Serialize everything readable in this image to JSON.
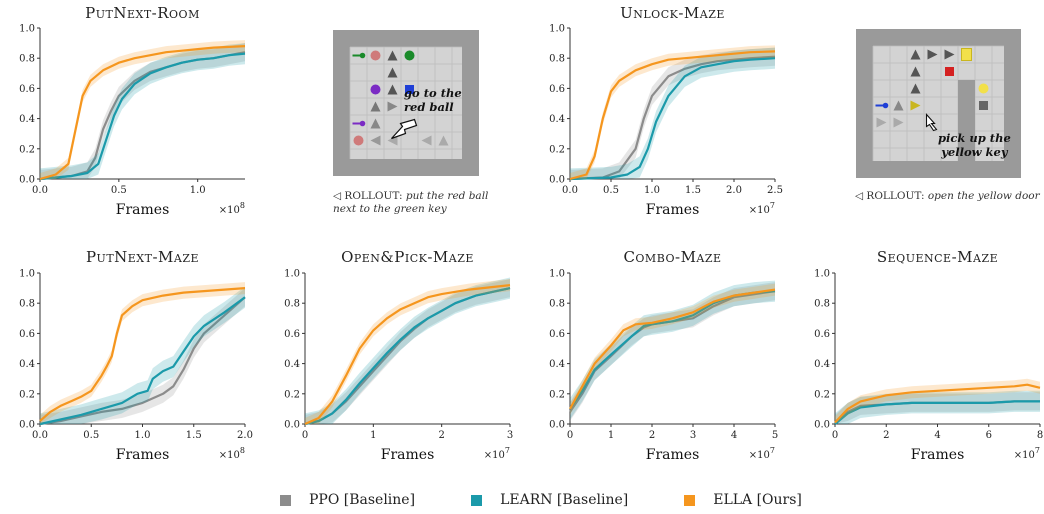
{
  "legend": {
    "ppo": "PPO [Baseline]",
    "learn": "LEARN [Baseline]",
    "ella": "ELLA [Ours]"
  },
  "colors": {
    "ppo": "#8c8c8c",
    "learn": "#1b9aaa",
    "ella": "#f5961e"
  },
  "captions": {
    "room": {
      "prefix": "◁ ROLLOUT:",
      "text": "put the red ball",
      "text2": "next to the green key"
    },
    "maze": {
      "prefix": "◁ ROLLOUT:",
      "text": "open the yellow door"
    }
  },
  "annotations": {
    "room": [
      "go to the",
      "red ball"
    ],
    "maze": [
      "pick up the",
      "yellow key"
    ]
  },
  "chart_data": [
    {
      "id": "putnext-room",
      "type": "line",
      "title": "PutNext-Room",
      "xlabel": "Frames",
      "xmult": "×10^8",
      "xlim": [
        0,
        1.3
      ],
      "ylim": [
        0,
        1.0
      ],
      "xticks": [
        0.0,
        0.5,
        1.0
      ],
      "xticklabels": [
        "0.0",
        "0.5",
        "1.0"
      ],
      "yticks": [
        0.0,
        0.2,
        0.4,
        0.6,
        0.8,
        1.0
      ],
      "series": [
        {
          "name": "PPO [Baseline]",
          "key": "ppo",
          "x": [
            0,
            0.2,
            0.3,
            0.35,
            0.4,
            0.45,
            0.5,
            0.6,
            0.7,
            0.8,
            0.9,
            1.0,
            1.1,
            1.2,
            1.3
          ],
          "y": [
            0,
            0.02,
            0.05,
            0.14,
            0.33,
            0.45,
            0.55,
            0.65,
            0.71,
            0.74,
            0.77,
            0.79,
            0.8,
            0.82,
            0.84
          ]
        },
        {
          "name": "LEARN [Baseline]",
          "key": "learn",
          "x": [
            0,
            0.2,
            0.3,
            0.37,
            0.42,
            0.47,
            0.52,
            0.6,
            0.7,
            0.8,
            0.9,
            1.0,
            1.1,
            1.2,
            1.3
          ],
          "y": [
            0,
            0.02,
            0.04,
            0.1,
            0.26,
            0.42,
            0.53,
            0.63,
            0.7,
            0.74,
            0.77,
            0.79,
            0.8,
            0.82,
            0.83
          ]
        },
        {
          "name": "ELLA [Ours]",
          "key": "ella",
          "x": [
            0,
            0.1,
            0.18,
            0.22,
            0.27,
            0.32,
            0.4,
            0.5,
            0.6,
            0.7,
            0.8,
            0.9,
            1.0,
            1.1,
            1.2,
            1.3
          ],
          "y": [
            0,
            0.03,
            0.1,
            0.3,
            0.55,
            0.65,
            0.72,
            0.77,
            0.8,
            0.82,
            0.84,
            0.85,
            0.86,
            0.87,
            0.875,
            0.88
          ]
        }
      ]
    },
    {
      "id": "unlock-maze",
      "type": "line",
      "title": "Unlock-Maze",
      "xlabel": "Frames",
      "xmult": "×10^7",
      "xlim": [
        0,
        2.5
      ],
      "ylim": [
        0,
        1.0
      ],
      "xticks": [
        0.0,
        0.5,
        1.0,
        1.5,
        2.0,
        2.5
      ],
      "xticklabels": [
        "0.0",
        "0.5",
        "1.0",
        "1.5",
        "2.0",
        "2.5"
      ],
      "yticks": [
        0.0,
        0.2,
        0.4,
        0.6,
        0.8,
        1.0
      ],
      "series": [
        {
          "name": "PPO [Baseline]",
          "key": "ppo",
          "x": [
            0,
            0.4,
            0.6,
            0.8,
            0.9,
            1.0,
            1.2,
            1.4,
            1.6,
            1.8,
            2.0,
            2.2,
            2.5
          ],
          "y": [
            0,
            0.01,
            0.05,
            0.2,
            0.4,
            0.55,
            0.68,
            0.73,
            0.76,
            0.78,
            0.79,
            0.8,
            0.81
          ]
        },
        {
          "name": "LEARN [Baseline]",
          "key": "learn",
          "x": [
            0,
            0.5,
            0.7,
            0.85,
            0.95,
            1.05,
            1.2,
            1.4,
            1.6,
            1.8,
            2.0,
            2.2,
            2.5
          ],
          "y": [
            0,
            0.01,
            0.03,
            0.08,
            0.2,
            0.38,
            0.55,
            0.68,
            0.74,
            0.76,
            0.78,
            0.79,
            0.8
          ]
        },
        {
          "name": "ELLA [Ours]",
          "key": "ella",
          "x": [
            0,
            0.2,
            0.3,
            0.4,
            0.5,
            0.6,
            0.8,
            1.0,
            1.2,
            1.4,
            1.6,
            1.8,
            2.0,
            2.2,
            2.5
          ],
          "y": [
            0,
            0.03,
            0.15,
            0.4,
            0.58,
            0.65,
            0.72,
            0.76,
            0.79,
            0.8,
            0.81,
            0.82,
            0.83,
            0.84,
            0.845
          ]
        }
      ]
    },
    {
      "id": "putnext-maze",
      "type": "line",
      "title": "PutNext-Maze",
      "xlabel": "Frames",
      "xmult": "×10^8",
      "xlim": [
        0,
        2.0
      ],
      "ylim": [
        0,
        1.0
      ],
      "xticks": [
        0.0,
        0.5,
        1.0,
        1.5,
        2.0
      ],
      "xticklabels": [
        "0.0",
        "0.5",
        "1.0",
        "1.5",
        "2.0"
      ],
      "yticks": [
        0.0,
        0.2,
        0.4,
        0.6,
        0.8,
        1.0
      ],
      "series": [
        {
          "name": "PPO [Baseline]",
          "key": "ppo",
          "x": [
            0,
            0.2,
            0.4,
            0.6,
            0.8,
            1.0,
            1.2,
            1.3,
            1.4,
            1.5,
            1.6,
            1.8,
            2.0
          ],
          "y": [
            0,
            0.02,
            0.05,
            0.08,
            0.1,
            0.14,
            0.2,
            0.25,
            0.36,
            0.5,
            0.6,
            0.72,
            0.84
          ]
        },
        {
          "name": "LEARN [Baseline]",
          "key": "learn",
          "x": [
            0,
            0.2,
            0.4,
            0.6,
            0.8,
            0.95,
            1.05,
            1.1,
            1.2,
            1.3,
            1.4,
            1.5,
            1.6,
            1.8,
            2.0
          ],
          "y": [
            0,
            0.03,
            0.06,
            0.1,
            0.14,
            0.2,
            0.22,
            0.3,
            0.35,
            0.38,
            0.48,
            0.58,
            0.65,
            0.74,
            0.84
          ]
        },
        {
          "name": "ELLA [Ours]",
          "key": "ella",
          "x": [
            0,
            0.1,
            0.2,
            0.3,
            0.4,
            0.5,
            0.6,
            0.65,
            0.7,
            0.75,
            0.8,
            0.9,
            1.0,
            1.2,
            1.4,
            1.6,
            1.8,
            2.0
          ],
          "y": [
            0.02,
            0.08,
            0.12,
            0.15,
            0.18,
            0.22,
            0.32,
            0.38,
            0.45,
            0.6,
            0.72,
            0.78,
            0.82,
            0.85,
            0.87,
            0.88,
            0.89,
            0.9
          ]
        }
      ]
    },
    {
      "id": "openpick-maze",
      "type": "line",
      "title": "Open&Pick-Maze",
      "xlabel": "Frames",
      "xmult": "×10^7",
      "xlim": [
        0,
        3
      ],
      "ylim": [
        0,
        1.0
      ],
      "xticks": [
        0,
        1,
        2,
        3
      ],
      "xticklabels": [
        "0",
        "1",
        "2",
        "3"
      ],
      "yticks": [
        0.0,
        0.2,
        0.4,
        0.6,
        0.8,
        1.0
      ],
      "series": [
        {
          "name": "PPO [Baseline]",
          "key": "ppo",
          "x": [
            0,
            0.2,
            0.4,
            0.6,
            0.8,
            1.0,
            1.2,
            1.4,
            1.6,
            1.8,
            2.0,
            2.2,
            2.5,
            2.8,
            3.0
          ],
          "y": [
            0,
            0.02,
            0.07,
            0.15,
            0.25,
            0.35,
            0.45,
            0.55,
            0.63,
            0.7,
            0.75,
            0.8,
            0.85,
            0.88,
            0.9
          ]
        },
        {
          "name": "LEARN [Baseline]",
          "key": "learn",
          "x": [
            0,
            0.2,
            0.4,
            0.6,
            0.8,
            1.0,
            1.2,
            1.4,
            1.6,
            1.8,
            2.0,
            2.2,
            2.5,
            2.8,
            3.0
          ],
          "y": [
            0,
            0.02,
            0.07,
            0.16,
            0.27,
            0.37,
            0.47,
            0.56,
            0.64,
            0.7,
            0.75,
            0.8,
            0.85,
            0.88,
            0.9
          ]
        },
        {
          "name": "ELLA [Ours]",
          "key": "ella",
          "x": [
            0,
            0.2,
            0.4,
            0.6,
            0.8,
            1.0,
            1.2,
            1.4,
            1.6,
            1.8,
            2.0,
            2.4,
            2.8,
            3.0
          ],
          "y": [
            0,
            0.04,
            0.15,
            0.32,
            0.5,
            0.62,
            0.7,
            0.76,
            0.8,
            0.84,
            0.86,
            0.89,
            0.91,
            0.92
          ]
        }
      ]
    },
    {
      "id": "combo-maze",
      "type": "line",
      "title": "Combo-Maze",
      "xlabel": "Frames",
      "xmult": "×10^7",
      "xlim": [
        0,
        5
      ],
      "ylim": [
        0,
        1.0
      ],
      "xticks": [
        0,
        1,
        2,
        3,
        4,
        5
      ],
      "xticklabels": [
        "0",
        "1",
        "2",
        "3",
        "4",
        "5"
      ],
      "yticks": [
        0.0,
        0.2,
        0.4,
        0.6,
        0.8,
        1.0
      ],
      "series": [
        {
          "name": "PPO [Baseline]",
          "key": "ppo",
          "x": [
            0,
            0.3,
            0.6,
            1.0,
            1.5,
            1.8,
            2.0,
            2.5,
            3.0,
            3.5,
            4.0,
            4.5,
            5.0
          ],
          "y": [
            0.08,
            0.2,
            0.35,
            0.45,
            0.58,
            0.64,
            0.66,
            0.68,
            0.7,
            0.78,
            0.84,
            0.86,
            0.88
          ]
        },
        {
          "name": "LEARN [Baseline]",
          "key": "learn",
          "x": [
            0,
            0.3,
            0.6,
            1.0,
            1.5,
            1.8,
            2.0,
            2.5,
            3.0,
            3.5,
            4.0,
            4.5,
            5.0
          ],
          "y": [
            0.1,
            0.22,
            0.36,
            0.46,
            0.58,
            0.65,
            0.66,
            0.68,
            0.72,
            0.8,
            0.85,
            0.87,
            0.88
          ]
        },
        {
          "name": "ELLA [Ours]",
          "key": "ella",
          "x": [
            0,
            0.3,
            0.6,
            1.0,
            1.3,
            1.6,
            2.0,
            2.5,
            3.0,
            3.5,
            4.0,
            4.5,
            5.0
          ],
          "y": [
            0.1,
            0.25,
            0.4,
            0.52,
            0.62,
            0.66,
            0.67,
            0.7,
            0.74,
            0.81,
            0.85,
            0.87,
            0.89
          ]
        }
      ]
    },
    {
      "id": "sequence-maze",
      "type": "line",
      "title": "Sequence-Maze",
      "xlabel": "Frames",
      "xmult": "×10^7",
      "xlim": [
        0,
        8
      ],
      "ylim": [
        0,
        1.0
      ],
      "xticks": [
        0,
        2,
        4,
        6,
        8
      ],
      "xticklabels": [
        "0",
        "2",
        "4",
        "6",
        "8"
      ],
      "yticks": [
        0.0,
        0.2,
        0.4,
        0.6,
        0.8,
        1.0
      ],
      "series": [
        {
          "name": "PPO [Baseline]",
          "key": "ppo",
          "x": [
            0,
            0.5,
            1,
            2,
            3,
            4,
            5,
            6,
            7,
            8
          ],
          "y": [
            0,
            0.08,
            0.12,
            0.13,
            0.14,
            0.14,
            0.14,
            0.14,
            0.15,
            0.15
          ]
        },
        {
          "name": "LEARN [Baseline]",
          "key": "learn",
          "x": [
            0,
            0.5,
            1,
            2,
            3,
            4,
            5,
            6,
            7,
            8
          ],
          "y": [
            0,
            0.07,
            0.11,
            0.13,
            0.14,
            0.14,
            0.14,
            0.14,
            0.15,
            0.15
          ]
        },
        {
          "name": "ELLA [Ours]",
          "key": "ella",
          "x": [
            0,
            0.5,
            1,
            2,
            3,
            4,
            5,
            6,
            7,
            7.5,
            8
          ],
          "y": [
            0.01,
            0.1,
            0.15,
            0.19,
            0.21,
            0.22,
            0.23,
            0.24,
            0.25,
            0.26,
            0.24
          ]
        }
      ]
    }
  ]
}
